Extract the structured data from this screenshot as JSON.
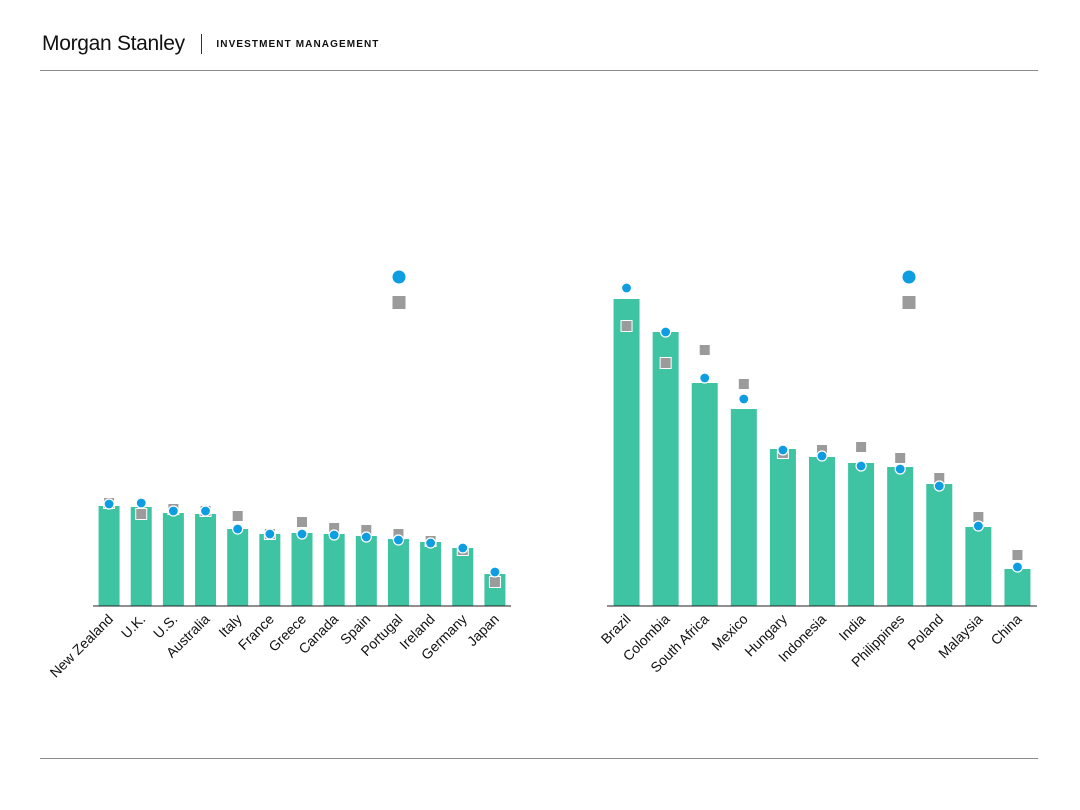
{
  "header": {
    "brand": "Morgan Stanley",
    "tagline": "INVESTMENT MANAGEMENT"
  },
  "colors": {
    "bar": "#3ec4a2",
    "dot": "#0e9de0",
    "square": "#9b9b9b",
    "rule": "#8c8c8c"
  },
  "chart_data": [
    {
      "type": "bar",
      "categories": [
        "New Zealand",
        "U.K.",
        "U.S.",
        "Australia",
        "Italy",
        "France",
        "Greece",
        "Canada",
        "Spain",
        "Portugal",
        "Ireland",
        "Germany",
        "Japan"
      ],
      "series": [
        {
          "marker": "bar",
          "values": [
            100,
            99,
            93,
            92,
            77,
            72,
            73,
            72,
            70,
            67,
            64,
            58,
            32
          ]
        },
        {
          "marker": "circle",
          "values": [
            102,
            103,
            95,
            95,
            77,
            72,
            72,
            71,
            69,
            66,
            63,
            58,
            34
          ]
        },
        {
          "marker": "square",
          "values": [
            103,
            92,
            97,
            95,
            90,
            72,
            84,
            78,
            76,
            72,
            65,
            56,
            24
          ]
        }
      ],
      "ylim": [
        0,
        320
      ]
    },
    {
      "type": "bar",
      "categories": [
        "Brazil",
        "Colombia",
        "South Africa",
        "Mexico",
        "Hungary",
        "Indonesia",
        "India",
        "Philippines",
        "Poland",
        "Malaysia",
        "China"
      ],
      "series": [
        {
          "marker": "bar",
          "values": [
            307,
            274,
            223,
            197,
            157,
            149,
            143,
            139,
            122,
            79,
            37
          ]
        },
        {
          "marker": "circle",
          "values": [
            318,
            274,
            228,
            207,
            156,
            150,
            140,
            137,
            120,
            80,
            39
          ]
        },
        {
          "marker": "square",
          "values": [
            280,
            243,
            256,
            222,
            153,
            156,
            159,
            148,
            128,
            89,
            51
          ]
        }
      ],
      "ylim": [
        0,
        320
      ]
    }
  ]
}
